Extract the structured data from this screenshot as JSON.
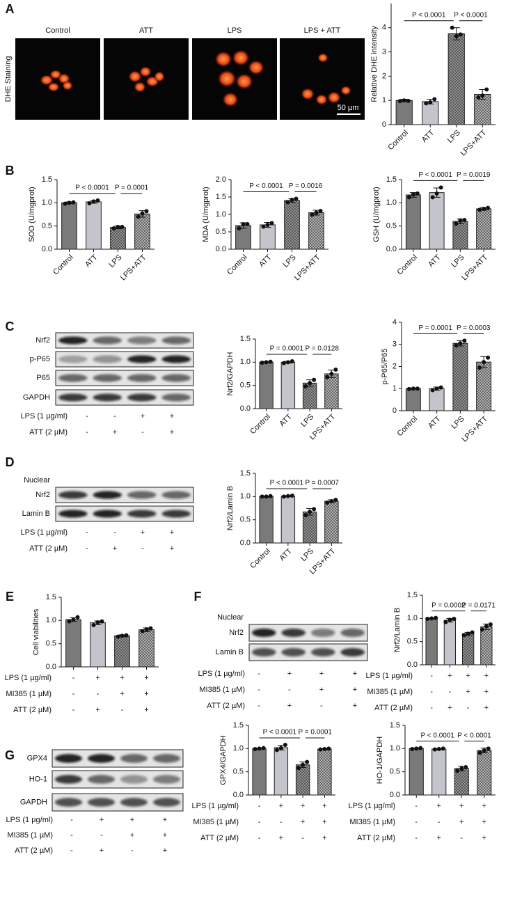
{
  "panel_letters": [
    "A",
    "B",
    "C",
    "D",
    "E",
    "F",
    "G"
  ],
  "micrographs": {
    "ylabel": "DHE Staining",
    "labels": [
      "Control",
      "ATT",
      "LPS",
      "LPS + ATT"
    ],
    "scale_bar": "50 µm"
  },
  "blots": [
    {
      "rows": [
        "Nrf2",
        "p-P65",
        "P65",
        "GAPDH"
      ],
      "conditions": [
        {
          "label": "LPS (1 µg/ml)",
          "signs": [
            "-",
            "-",
            "+",
            "+"
          ]
        },
        {
          "label": "ATT (2 µM)",
          "signs": [
            "-",
            "+",
            "-",
            "+"
          ]
        }
      ]
    },
    {
      "header": "Nuclear",
      "rows": [
        "Nrf2",
        "Lamin B"
      ],
      "conditions": [
        {
          "label": "LPS (1 µg/ml)",
          "signs": [
            "-",
            "-",
            "+",
            "+"
          ]
        },
        {
          "label": "ATT (2 µM)",
          "signs": [
            "-",
            "+",
            "-",
            "+"
          ]
        }
      ]
    },
    {
      "header": "Nuclear",
      "rows": [
        "Nrf2",
        "Lamin B"
      ],
      "conditions": [
        {
          "label": "LPS (1 µg/ml)",
          "signs": [
            "-",
            "+",
            "+",
            "+"
          ]
        },
        {
          "label": "MI385 (1 µM)",
          "signs": [
            "-",
            "-",
            "+",
            "+"
          ]
        },
        {
          "label": "ATT (2 µM)",
          "signs": [
            "-",
            "+",
            "-",
            "+"
          ]
        }
      ]
    },
    {
      "rows": [
        "GPX4",
        "HO-1",
        "GAPDH"
      ],
      "conditions": [
        {
          "label": "LPS (1 µg/ml)",
          "signs": [
            "-",
            "+",
            "+",
            "+"
          ]
        },
        {
          "label": "MI385 (1 µM)",
          "signs": [
            "-",
            "-",
            "+",
            "+"
          ]
        },
        {
          "label": "ATT (2 µM)",
          "signs": [
            "-",
            "+",
            "-",
            "+"
          ]
        }
      ]
    }
  ],
  "chart_data": [
    {
      "type": "bar",
      "ylabel": "Relative DHE intensity",
      "categories": [
        "Control",
        "ATT",
        "LPS",
        "LPS+ATT"
      ],
      "values": [
        1.0,
        0.95,
        3.75,
        1.25
      ],
      "errors": [
        0.05,
        0.1,
        0.25,
        0.2
      ],
      "points": [
        [
          0.97,
          1.0,
          0.98
        ],
        [
          0.88,
          0.92,
          1.05
        ],
        [
          4.0,
          3.65,
          3.72
        ],
        [
          1.12,
          1.2,
          1.45
        ]
      ],
      "annotations": [
        "P < 0.0001",
        "P < 0.0001"
      ],
      "ylim": [
        0,
        5
      ],
      "yticks": [
        0,
        1,
        2,
        3,
        4
      ],
      "colors": [
        "#7a7a7a",
        "#c4c4cc",
        "#9a9a9a",
        "#bdbdbd"
      ],
      "hatch": [
        false,
        false,
        true,
        true
      ]
    },
    {
      "type": "bar",
      "ylabel": "SOD (U/mgprot)",
      "categories": [
        "Control",
        "ATT",
        "LPS",
        "LPS+ATT"
      ],
      "values": [
        1.0,
        1.02,
        0.47,
        0.76
      ],
      "errors": [
        0.02,
        0.03,
        0.03,
        0.07
      ],
      "points": [
        [
          0.98,
          1.0,
          1.01
        ],
        [
          0.99,
          1.03,
          1.05
        ],
        [
          0.45,
          0.48,
          0.48
        ],
        [
          0.7,
          0.77,
          0.82
        ]
      ],
      "annotations": [
        "P < 0.0001",
        "P = 0.0001"
      ],
      "ylim": [
        0,
        1.5
      ],
      "yticks": [
        {
          "value": 0,
          "label": "0.0"
        },
        0.5,
        {
          "value": 1,
          "label": "1.0"
        },
        1.5
      ],
      "colors": [
        "#7a7a7a",
        "#c4c4cc",
        "#9a9a9a",
        "#bdbdbd"
      ],
      "hatch": [
        false,
        false,
        true,
        true
      ]
    },
    {
      "type": "bar",
      "ylabel": "MDA (U/mgprot)",
      "categories": [
        "Control",
        "ATT",
        "LPS",
        "LPS+ATT"
      ],
      "values": [
        0.68,
        0.7,
        1.4,
        1.05
      ],
      "errors": [
        0.08,
        0.07,
        0.05,
        0.07
      ],
      "points": [
        [
          0.6,
          0.72,
          0.72
        ],
        [
          0.65,
          0.7,
          0.75
        ],
        [
          1.35,
          1.42,
          1.45
        ],
        [
          0.99,
          1.05,
          1.1
        ]
      ],
      "annotations": [
        "P < 0.0001",
        "P = 0.0016"
      ],
      "ylim": [
        0,
        2
      ],
      "yticks": [
        {
          "value": 0,
          "label": "0.0"
        },
        0.5,
        {
          "value": 1,
          "label": "1.0"
        },
        1.5,
        {
          "value": 2,
          "label": "2.0"
        }
      ],
      "colors": [
        "#7a7a7a",
        "#c4c4cc",
        "#9a9a9a",
        "#bdbdbd"
      ],
      "hatch": [
        false,
        false,
        true,
        true
      ]
    },
    {
      "type": "bar",
      "ylabel": "GSH (U/mgprot)",
      "categories": [
        "Control",
        "ATT",
        "LPS",
        "LPS+ATT"
      ],
      "values": [
        1.17,
        1.22,
        0.6,
        0.87
      ],
      "errors": [
        0.05,
        0.1,
        0.05,
        0.03
      ],
      "points": [
        [
          1.12,
          1.18,
          1.2
        ],
        [
          1.12,
          1.2,
          1.33
        ],
        [
          0.55,
          0.62,
          0.63
        ],
        [
          0.85,
          0.87,
          0.89
        ]
      ],
      "annotations": [
        "P < 0.0001",
        "P = 0.0019"
      ],
      "ylim": [
        0,
        1.5
      ],
      "yticks": [
        {
          "value": 0,
          "label": "0.0"
        },
        0.5,
        {
          "value": 1,
          "label": "1.0"
        },
        1.5
      ],
      "colors": [
        "#7a7a7a",
        "#c4c4cc",
        "#9a9a9a",
        "#bdbdbd"
      ],
      "hatch": [
        false,
        false,
        true,
        true
      ]
    },
    {
      "type": "bar",
      "ylabel": "Nrf2/GAPDH",
      "categories": [
        "Control",
        "ATT",
        "LPS",
        "LPS+ATT"
      ],
      "values": [
        1.0,
        1.0,
        0.55,
        0.75
      ],
      "errors": [
        0.01,
        0.02,
        0.07,
        0.08
      ],
      "points": [
        [
          0.99,
          1.0,
          1.01
        ],
        [
          0.98,
          1.0,
          1.02
        ],
        [
          0.48,
          0.55,
          0.62
        ],
        [
          0.68,
          0.75,
          0.84
        ]
      ],
      "annotations": [
        "P = 0.0001",
        "P = 0.0128"
      ],
      "ylim": [
        0,
        1.5
      ],
      "yticks": [
        {
          "value": 0,
          "label": "0.0"
        },
        0.5,
        {
          "value": 1,
          "label": "1.0"
        },
        1.5
      ],
      "colors": [
        "#7a7a7a",
        "#c4c4cc",
        "#9a9a9a",
        "#bdbdbd"
      ],
      "hatch": [
        false,
        false,
        true,
        true
      ]
    },
    {
      "type": "bar",
      "ylabel": "p-P65/P65",
      "categories": [
        "Control",
        "ATT",
        "LPS",
        "LPS+ATT"
      ],
      "values": [
        1.0,
        1.0,
        3.05,
        2.2
      ],
      "errors": [
        0.02,
        0.07,
        0.12,
        0.25
      ],
      "points": [
        [
          0.98,
          1.0,
          1.0
        ],
        [
          0.93,
          1.0,
          1.05
        ],
        [
          2.95,
          3.05,
          3.17
        ],
        [
          1.95,
          2.2,
          2.4
        ]
      ],
      "annotations": [
        "P = 0.0001",
        "P = 0.0003"
      ],
      "ylim": [
        0,
        4
      ],
      "yticks": [
        0,
        1,
        2,
        3,
        4
      ],
      "colors": [
        "#7a7a7a",
        "#c4c4cc",
        "#9a9a9a",
        "#bdbdbd"
      ],
      "hatch": [
        false,
        false,
        true,
        true
      ]
    },
    {
      "type": "bar",
      "ylabel": "Nrf2/Lamin B",
      "categories": [
        "Control",
        "ATT",
        "LPS",
        "LPS+ATT"
      ],
      "values": [
        1.0,
        1.01,
        0.67,
        0.9
      ],
      "errors": [
        0.01,
        0.01,
        0.07,
        0.03
      ],
      "points": [
        [
          1.0,
          1.0,
          1.01
        ],
        [
          1.0,
          1.01,
          1.02
        ],
        [
          0.6,
          0.67,
          0.73
        ],
        [
          0.87,
          0.9,
          0.93
        ]
      ],
      "annotations": [
        "P < 0.0001",
        "P = 0.0007"
      ],
      "ylim": [
        0,
        1.5
      ],
      "yticks": [
        {
          "value": 0,
          "label": "0.0"
        },
        0.5,
        {
          "value": 1,
          "label": "1.0"
        },
        1.5
      ],
      "colors": [
        "#7a7a7a",
        "#c4c4cc",
        "#9a9a9a",
        "#bdbdbd"
      ],
      "hatch": [
        false,
        false,
        true,
        true
      ]
    },
    {
      "type": "bar",
      "ylabel": "Cell viabilities",
      "values": [
        1.02,
        0.95,
        0.67,
        0.8
      ],
      "errors": [
        0.04,
        0.04,
        0.02,
        0.04
      ],
      "points": [
        [
          0.98,
          1.02,
          1.07
        ],
        [
          0.9,
          0.96,
          0.98
        ],
        [
          0.65,
          0.67,
          0.68
        ],
        [
          0.77,
          0.81,
          0.83
        ]
      ],
      "ylim": [
        0,
        1.5
      ],
      "yticks": [
        {
          "value": 0,
          "label": "0.0"
        },
        0.5,
        {
          "value": 1,
          "label": "1.0"
        },
        1.5
      ],
      "colors": [
        "#7a7a7a",
        "#c4c4cc",
        "#9a9a9a",
        "#bdbdbd"
      ],
      "hatch": [
        false,
        false,
        true,
        true
      ],
      "conditions": [
        {
          "label": "LPS (1 µg/ml)",
          "signs": [
            "-",
            "+",
            "+",
            "+"
          ]
        },
        {
          "label": "MI385 (1 µM)",
          "signs": [
            "-",
            "-",
            "+",
            "+"
          ]
        },
        {
          "label": "ATT (2 µM)",
          "signs": [
            "-",
            "+",
            "-",
            "+"
          ]
        }
      ]
    },
    {
      "type": "bar",
      "ylabel": "Nrf2/Lamin B",
      "values": [
        1.0,
        0.96,
        0.67,
        0.82
      ],
      "errors": [
        0.01,
        0.04,
        0.03,
        0.06
      ],
      "points": [
        [
          0.99,
          1.0,
          1.01
        ],
        [
          0.92,
          0.97,
          0.99
        ],
        [
          0.64,
          0.67,
          0.7
        ],
        [
          0.76,
          0.83,
          0.87
        ]
      ],
      "annotations": [
        "P = 0.0002",
        "P = 0.0171"
      ],
      "ylim": [
        0,
        1.5
      ],
      "yticks": [
        {
          "value": 0,
          "label": "0.0"
        },
        0.5,
        {
          "value": 1,
          "label": "1.0"
        },
        1.5
      ],
      "colors": [
        "#7a7a7a",
        "#c4c4cc",
        "#9a9a9a",
        "#bdbdbd"
      ],
      "hatch": [
        false,
        false,
        true,
        true
      ],
      "conditions": [
        {
          "label": "LPS (1 µg/ml)",
          "signs": [
            "-",
            "+",
            "+",
            "+"
          ]
        },
        {
          "label": "MI385 (1 µM)",
          "signs": [
            "-",
            "-",
            "+",
            "+"
          ]
        },
        {
          "label": "ATT (2 µM)",
          "signs": [
            "-",
            "+",
            "-",
            "+"
          ]
        }
      ]
    },
    {
      "type": "bar",
      "ylabel": "GPX4/GAPDH",
      "values": [
        1.0,
        1.02,
        0.65,
        0.99
      ],
      "errors": [
        0.01,
        0.05,
        0.06,
        0.01
      ],
      "points": [
        [
          0.99,
          1.0,
          1.01
        ],
        [
          0.97,
          1.01,
          1.08
        ],
        [
          0.58,
          0.65,
          0.71
        ],
        [
          0.98,
          0.99,
          1.0
        ]
      ],
      "annotations": [
        "P < 0.0001",
        "P = 0.0001"
      ],
      "ylim": [
        0,
        1.5
      ],
      "yticks": [
        {
          "value": 0,
          "label": "0.0"
        },
        0.5,
        {
          "value": 1,
          "label": "1.0"
        },
        1.5
      ],
      "colors": [
        "#7a7a7a",
        "#c4c4cc",
        "#9a9a9a",
        "#bdbdbd"
      ],
      "hatch": [
        false,
        false,
        true,
        true
      ],
      "conditions": [
        {
          "label": "LPS (1 µg/ml)",
          "signs": [
            "-",
            "+",
            "+",
            "+"
          ]
        },
        {
          "label": "MI385 (1 µM)",
          "signs": [
            "-",
            "-",
            "+",
            "+"
          ]
        },
        {
          "label": "ATT (2 µM)",
          "signs": [
            "-",
            "+",
            "-",
            "+"
          ]
        }
      ]
    },
    {
      "type": "bar",
      "ylabel": "HO-1/GAPDH",
      "values": [
        1.0,
        0.99,
        0.57,
        0.96
      ],
      "errors": [
        0.01,
        0.01,
        0.05,
        0.05
      ],
      "points": [
        [
          0.99,
          1.0,
          1.01
        ],
        [
          0.98,
          0.99,
          1.0
        ],
        [
          0.52,
          0.57,
          0.6
        ],
        [
          0.91,
          0.96,
          1.0
        ]
      ],
      "annotations": [
        "P < 0.0001",
        "P < 0.0001"
      ],
      "ylim": [
        0,
        1.5
      ],
      "yticks": [
        {
          "value": 0,
          "label": "0.0"
        },
        0.5,
        {
          "value": 1,
          "label": "1.0"
        },
        1.5
      ],
      "colors": [
        "#7a7a7a",
        "#c4c4cc",
        "#9a9a9a",
        "#bdbdbd"
      ],
      "hatch": [
        false,
        false,
        true,
        true
      ],
      "conditions": [
        {
          "label": "LPS (1 µg/ml)",
          "signs": [
            "-",
            "+",
            "+",
            "+"
          ]
        },
        {
          "label": "MI385 (1 µM)",
          "signs": [
            "-",
            "-",
            "+",
            "+"
          ]
        },
        {
          "label": "ATT (2 µM)",
          "signs": [
            "-",
            "+",
            "-",
            "+"
          ]
        }
      ]
    }
  ]
}
